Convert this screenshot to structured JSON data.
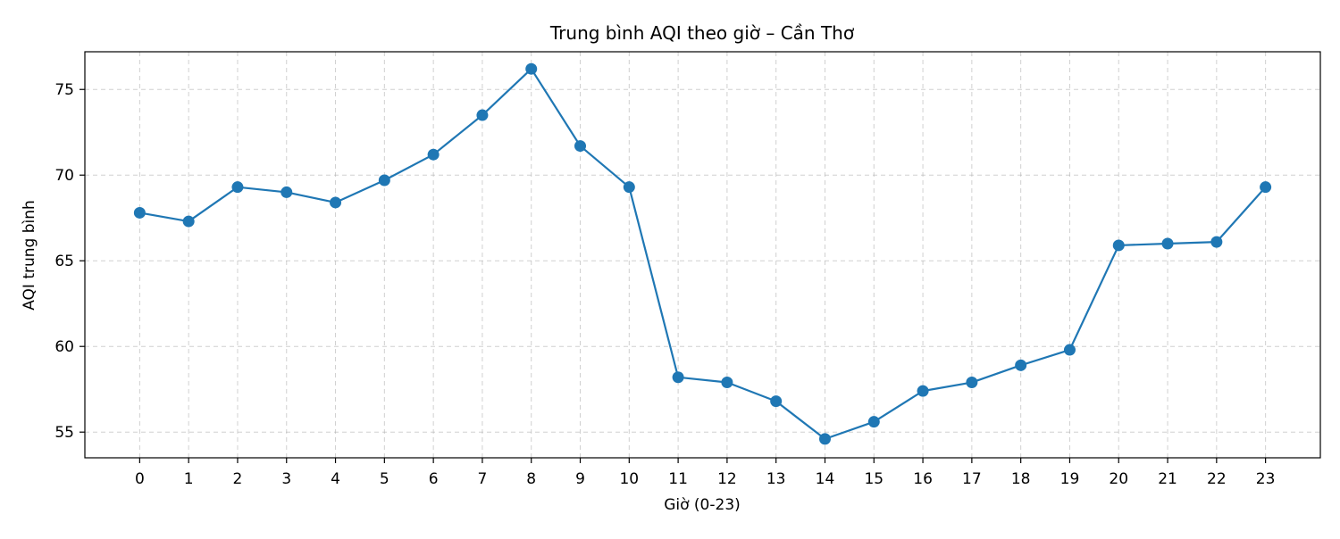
{
  "chart_data": {
    "type": "line",
    "title": "Trung bình AQI theo giờ – Cần Thơ",
    "xlabel": "Giờ (0-23)",
    "ylabel": "AQI trung bình",
    "x": [
      0,
      1,
      2,
      3,
      4,
      5,
      6,
      7,
      8,
      9,
      10,
      11,
      12,
      13,
      14,
      15,
      16,
      17,
      18,
      19,
      20,
      21,
      22,
      23
    ],
    "x_tick_labels": [
      "0",
      "1",
      "2",
      "3",
      "4",
      "5",
      "6",
      "7",
      "8",
      "9",
      "10",
      "11",
      "12",
      "13",
      "14",
      "15",
      "16",
      "17",
      "18",
      "19",
      "20",
      "21",
      "22",
      "23"
    ],
    "y_ticks": [
      55,
      60,
      65,
      70,
      75
    ],
    "y_tick_labels": [
      "55",
      "60",
      "65",
      "70",
      "75"
    ],
    "xlim": [
      -1.12,
      24.12
    ],
    "ylim": [
      53.5,
      77.2
    ],
    "grid": true,
    "grid_style": "dashed",
    "series": [
      {
        "values": [
          67.8,
          67.3,
          69.3,
          69.0,
          68.4,
          69.7,
          71.2,
          73.5,
          76.2,
          71.7,
          69.3,
          58.2,
          57.9,
          56.8,
          54.6,
          55.6,
          57.4,
          57.9,
          58.9,
          59.8,
          65.9,
          66.0,
          66.1,
          69.3
        ],
        "color": "#1f77b4",
        "marker": "circle"
      }
    ]
  }
}
